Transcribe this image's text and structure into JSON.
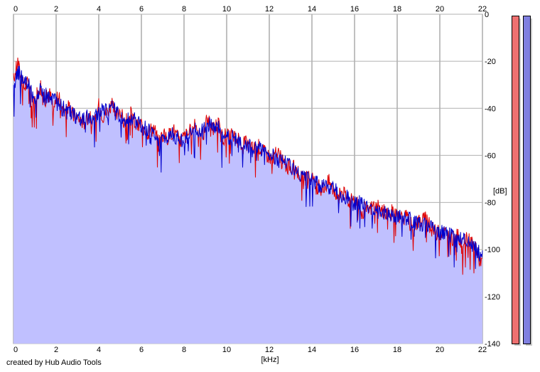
{
  "app": {
    "credit": "created by Hub Audio Tools"
  },
  "chart_data": {
    "type": "area",
    "title": "",
    "xlabel": "[kHz]",
    "ylabel": "[dB]",
    "xlim": [
      0,
      22
    ],
    "ylim": [
      -140,
      0
    ],
    "x_ticks": [
      0,
      2,
      4,
      6,
      8,
      10,
      12,
      14,
      16,
      18,
      20,
      22
    ],
    "y_ticks": [
      0,
      -20,
      -40,
      -60,
      -80,
      -100,
      -120,
      -140
    ],
    "y_tick_labels": [
      "0",
      "-20",
      "-40",
      "-60",
      "-80",
      "-100",
      "-120",
      "-140"
    ],
    "grid": true,
    "fill_color": "#c0c0ff",
    "series": [
      {
        "color": "#e00000",
        "x": [
          0,
          0.2,
          0.3,
          0.5,
          0.7,
          0.9,
          1.1,
          1.3,
          1.5,
          1.7,
          1.9,
          2.1,
          2.3,
          2.5,
          2.8,
          3.0,
          3.3,
          3.6,
          3.8,
          4.0,
          4.2,
          4.4,
          4.6,
          4.8,
          5.0,
          5.2,
          5.5,
          5.8,
          6.0,
          6.3,
          6.6,
          6.8,
          7.0,
          7.2,
          7.5,
          7.8,
          8.0,
          8.3,
          8.6,
          8.9,
          9.1,
          9.3,
          9.6,
          9.8,
          10.0,
          10.3,
          10.6,
          10.9,
          11.2,
          11.5,
          11.8,
          12.1,
          12.4,
          12.7,
          13.0,
          13.3,
          13.6,
          13.9,
          14.2,
          14.5,
          14.8,
          15.1,
          15.4,
          15.7,
          16.0,
          16.3,
          16.6,
          16.9,
          17.2,
          17.5,
          17.8,
          18.1,
          18.4,
          18.7,
          19.0,
          19.3,
          19.6,
          19.9,
          20.2,
          20.5,
          20.8,
          21.1,
          21.4,
          21.7,
          22.0
        ],
        "values": [
          -28,
          -20,
          -25,
          -31,
          -29,
          -38,
          -33,
          -31,
          -36,
          -34,
          -39,
          -35,
          -41,
          -39,
          -43,
          -44,
          -46,
          -42,
          -47,
          -39,
          -43,
          -41,
          -38,
          -44,
          -40,
          -47,
          -42,
          -48,
          -46,
          -50,
          -48,
          -55,
          -51,
          -53,
          -49,
          -54,
          -52,
          -50,
          -47,
          -52,
          -44,
          -49,
          -46,
          -53,
          -51,
          -52,
          -54,
          -55,
          -57,
          -56,
          -59,
          -61,
          -59,
          -64,
          -65,
          -66,
          -71,
          -69,
          -73,
          -74,
          -71,
          -76,
          -75,
          -79,
          -80,
          -82,
          -84,
          -81,
          -83,
          -85,
          -84,
          -87,
          -86,
          -90,
          -88,
          -87,
          -91,
          -93,
          -92,
          -96,
          -94,
          -97,
          -95,
          -99,
          -106
        ]
      },
      {
        "color": "#0000cc",
        "x": [
          0,
          0.1,
          0.3,
          0.5,
          0.7,
          0.9,
          1.1,
          1.3,
          1.5,
          1.7,
          1.9,
          2.1,
          2.3,
          2.5,
          2.8,
          3.0,
          3.3,
          3.6,
          3.8,
          4.0,
          4.2,
          4.4,
          4.6,
          4.8,
          5.0,
          5.2,
          5.5,
          5.8,
          6.0,
          6.3,
          6.6,
          6.8,
          7.0,
          7.2,
          7.5,
          7.8,
          8.0,
          8.3,
          8.6,
          8.9,
          9.1,
          9.3,
          9.6,
          9.8,
          10.0,
          10.3,
          10.6,
          10.9,
          11.2,
          11.5,
          11.8,
          12.1,
          12.4,
          12.7,
          13.0,
          13.3,
          13.6,
          13.9,
          14.2,
          14.5,
          14.8,
          15.1,
          15.4,
          15.7,
          16.0,
          16.3,
          16.6,
          16.9,
          17.2,
          17.5,
          17.8,
          18.1,
          18.4,
          18.7,
          19.0,
          19.3,
          19.6,
          19.9,
          20.2,
          20.5,
          20.8,
          21.1,
          21.4,
          21.7,
          22.0
        ],
        "values": [
          -32,
          -27,
          -24,
          -30,
          -28,
          -36,
          -35,
          -32,
          -34,
          -36,
          -37,
          -38,
          -40,
          -41,
          -42,
          -45,
          -44,
          -43,
          -45,
          -41,
          -40,
          -42,
          -39,
          -42,
          -43,
          -45,
          -44,
          -46,
          -48,
          -49,
          -51,
          -54,
          -52,
          -52,
          -51,
          -53,
          -53,
          -51,
          -49,
          -50,
          -47,
          -47,
          -48,
          -51,
          -53,
          -52,
          -55,
          -54,
          -58,
          -57,
          -57,
          -60,
          -62,
          -62,
          -64,
          -68,
          -70,
          -70,
          -72,
          -73,
          -74,
          -75,
          -77,
          -78,
          -81,
          -80,
          -82,
          -83,
          -84,
          -84,
          -86,
          -85,
          -87,
          -88,
          -89,
          -89,
          -90,
          -92,
          -93,
          -94,
          -96,
          -96,
          -98,
          -100,
          -103
        ]
      }
    ]
  },
  "meters": {
    "left": {
      "color": "#ee7070"
    },
    "right": {
      "color": "#8080e0"
    }
  }
}
